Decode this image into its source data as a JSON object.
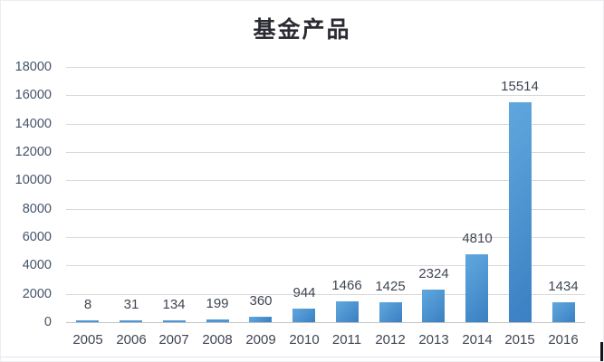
{
  "chart_data": {
    "type": "bar",
    "title": "基金产品",
    "categories": [
      "2005",
      "2006",
      "2007",
      "2008",
      "2009",
      "2010",
      "2011",
      "2012",
      "2013",
      "2014",
      "2015",
      "2016"
    ],
    "values": [
      8,
      31,
      134,
      199,
      360,
      944,
      1466,
      1425,
      2324,
      4810,
      15514,
      1434
    ],
    "data_labels": [
      "8",
      "31",
      "134",
      "199",
      "360",
      "944",
      "1466",
      "1425",
      "2324",
      "4810",
      "15514",
      "1434"
    ],
    "xlabel": "",
    "ylabel": "",
    "ylim": [
      0,
      18000
    ],
    "ytick_interval": 2000,
    "yticks": [
      "18000",
      "16000",
      "14000",
      "12000",
      "10000",
      "8000",
      "6000",
      "4000",
      "2000",
      "0"
    ],
    "grid": "horizontal",
    "legend_position": "none"
  },
  "colors": {
    "bar_gradient_top": "#61a7de",
    "bar_gradient_bottom": "#3a80c2",
    "bar_solid_small": "#4d96d3",
    "gridline": "#d9d9d9",
    "axis_line": "#c3c3c3",
    "ytick_label": "#44546a",
    "data_label": "#3f4552",
    "xtick_label": "#3f4552",
    "title": "#2b2b33"
  }
}
